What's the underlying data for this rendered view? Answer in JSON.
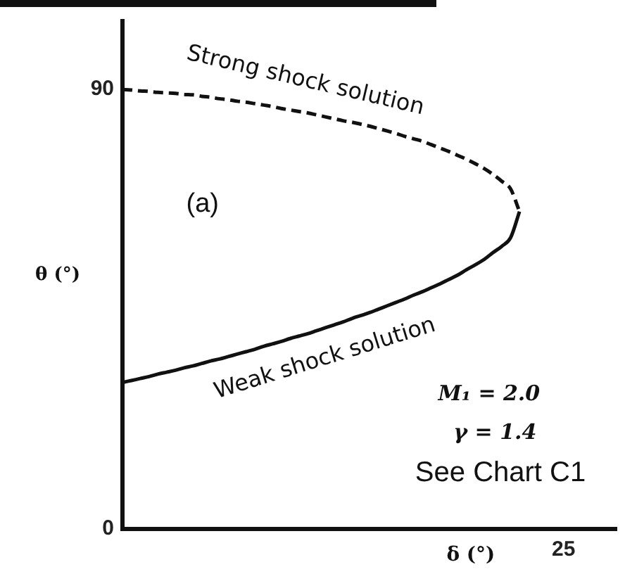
{
  "chart_data": {
    "type": "line",
    "xlabel": "δ (°)",
    "ylabel": "θ (°)",
    "annotations": [
      "(a)",
      "M₁ = 2.0",
      "γ = 1.4",
      "See Chart C1"
    ],
    "categories": [
      null,
      null,
      null,
      null,
      null,
      null,
      null,
      null,
      null,
      null,
      null,
      null,
      null,
      null,
      null,
      null,
      null,
      null,
      null,
      null,
      null,
      null,
      null,
      null,
      null,
      null,
      null,
      null,
      null,
      null,
      null,
      null,
      null,
      null,
      null,
      null,
      null,
      null,
      null,
      null,
      null,
      null,
      null,
      null,
      null,
      null,
      null,
      null,
      null,
      null,
      "25",
      null,
      null,
      null,
      null,
      null,
      null
    ],
    "series": [
      {
        "name": "Strong shock solution",
        "color": "#111111",
        "line_style": "dashed",
        "values": [
          90,
          89.9,
          89.7,
          89.6,
          89.4,
          89.3,
          89.2,
          89,
          88.9,
          88.6,
          88.4,
          88.1,
          87.9,
          87.6,
          87.4,
          87.1,
          86.8,
          86.5,
          86.1,
          85.8,
          85.5,
          85.2,
          84.8,
          84.4,
          84,
          83.6,
          83.3,
          82.9,
          82.5,
          82,
          81.5,
          81,
          80.4,
          79.9,
          79.4,
          78.7,
          78,
          77.3,
          76.5,
          75.7,
          74.8,
          73.8,
          72.6,
          71.2,
          69.6,
          65,
          null,
          null,
          null,
          null,
          null,
          null,
          null,
          null,
          null,
          null,
          null
        ]
      },
      {
        "name": "Weak shock solution",
        "color": "#111111",
        "line_style": "solid",
        "values": [
          30,
          30.4,
          30.8,
          31.2,
          31.7,
          32.1,
          32.5,
          33,
          33.4,
          33.9,
          34.4,
          34.8,
          35.3,
          35.8,
          36.3,
          36.8,
          37.4,
          37.9,
          38.4,
          39,
          39.5,
          40,
          40.6,
          41.2,
          41.8,
          42.4,
          43.1,
          43.7,
          44.3,
          45,
          45.7,
          46.4,
          47.1,
          47.9,
          48.6,
          49.4,
          50.2,
          51.1,
          52,
          53.1,
          54.1,
          55.2,
          56.6,
          57.9,
          59.7,
          65,
          null,
          null,
          null,
          null,
          null,
          null,
          null,
          null,
          null,
          null,
          null
        ]
      }
    ],
    "ylim": [
      0,
      104
    ],
    "yticks": [
      0,
      90
    ],
    "marker": "none",
    "legend": false
  }
}
